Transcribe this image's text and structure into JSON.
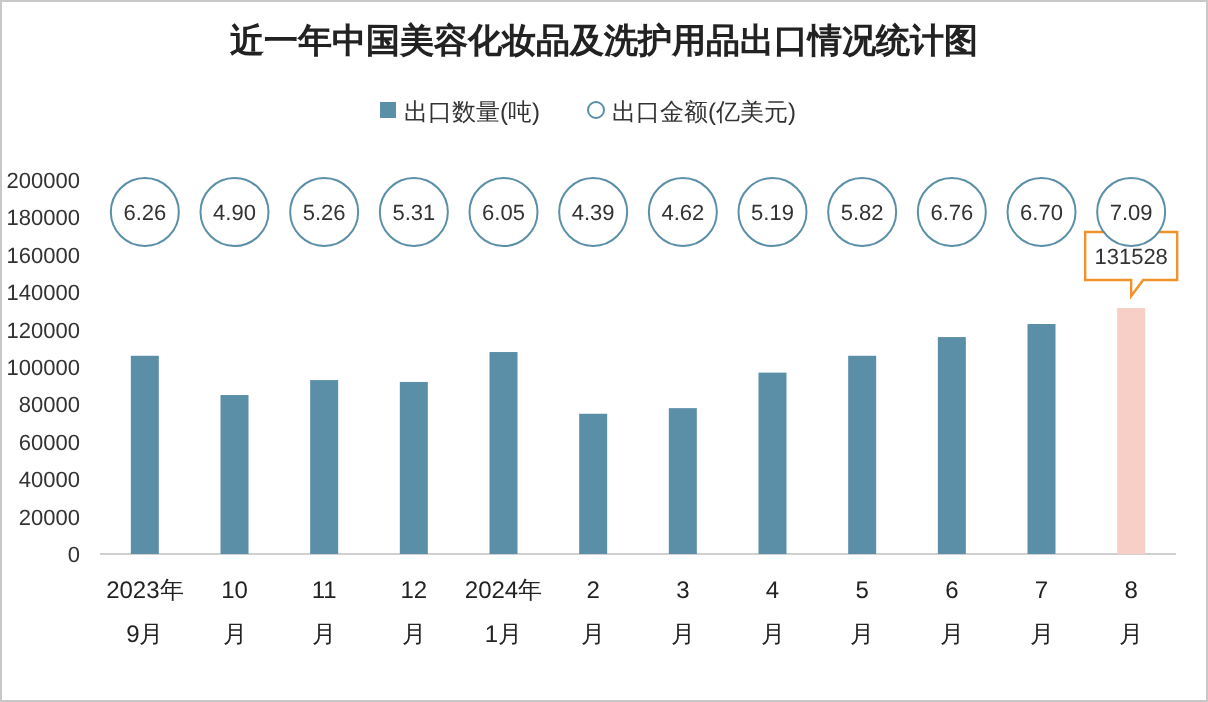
{
  "chart_data": {
    "type": "bar",
    "title": "近一年中国美容化妆品及洗护用品出口情况统计图",
    "categories": [
      "2023年\n9月",
      "10\n月",
      "11\n月",
      "12\n月",
      "2024年\n1月",
      "2\n月",
      "3\n月",
      "4\n月",
      "5\n月",
      "6\n月",
      "7\n月",
      "8\n月"
    ],
    "series": [
      {
        "name": "出口数量(吨)",
        "color": "#5b8fa8",
        "colors": [
          "#5b8fa8",
          "#5b8fa8",
          "#5b8fa8",
          "#5b8fa8",
          "#5b8fa8",
          "#5b8fa8",
          "#5b8fa8",
          "#5b8fa8",
          "#5b8fa8",
          "#5b8fa8",
          "#5b8fa8",
          "#f8cfc6"
        ],
        "values": [
          106000,
          85000,
          93000,
          92000,
          108000,
          75000,
          78000,
          97000,
          106000,
          116000,
          123000,
          131528
        ],
        "value_labels": [
          null,
          null,
          null,
          null,
          null,
          null,
          null,
          null,
          null,
          null,
          null,
          "131528"
        ]
      }
    ],
    "annotations": [
      "出口金额(亿美元)",
      {
        "text": "6.26",
        "x": "2023年\n9月"
      },
      {
        "text": "4.90",
        "x": "10\n月"
      },
      {
        "text": "5.26",
        "x": "11\n月"
      },
      {
        "text": "5.31",
        "x": "12\n月"
      },
      {
        "text": "6.05",
        "x": "2024年\n1月"
      },
      {
        "text": "4.39",
        "x": "2\n月"
      },
      {
        "text": "4.62",
        "x": "3\n月"
      },
      {
        "text": "5.19",
        "x": "4\n月"
      },
      {
        "text": "5.82",
        "x": "5\n月"
      },
      {
        "text": "6.76",
        "x": "6\n月"
      },
      {
        "text": "6.70",
        "x": "7\n月"
      },
      {
        "text": "7.09",
        "x": "8\n月"
      }
    ],
    "ylim": [
      0,
      200000
    ],
    "yticks": [
      0,
      20000,
      40000,
      60000,
      80000,
      100000,
      120000,
      140000,
      160000,
      180000,
      200000
    ],
    "grid": false,
    "legend": "top"
  }
}
